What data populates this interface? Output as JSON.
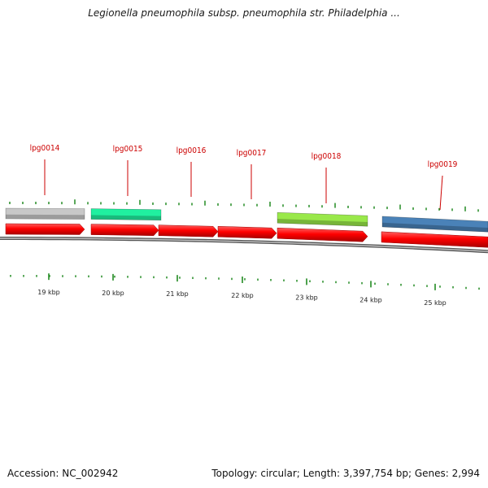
{
  "title": "Legionella pneumophila subsp. pneumophila str. Philadelphia ...",
  "footer": {
    "accession": "Accession: NC_002942",
    "summary": "Topology: circular; Length: 3,397,754 bp; Genes: 2,994"
  },
  "colors": {
    "gene_label": "#cc0000",
    "leader_line": "#cc0000",
    "tick": "#228b22",
    "strand": "#ff0000",
    "backbone": "#888888"
  },
  "genes": [
    {
      "id": "lpg0014",
      "color": "#c8c8c8"
    },
    {
      "id": "lpg0015",
      "color": "#20f0a0"
    },
    {
      "id": "lpg0016",
      "color": null
    },
    {
      "id": "lpg0017",
      "color": null
    },
    {
      "id": "lpg0018",
      "color": "#99e84a"
    },
    {
      "id": "lpg0019",
      "color": "#4a82b8"
    }
  ],
  "ruler": {
    "labels": [
      "19 kbp",
      "20 kbp",
      "21 kbp",
      "22 kbp",
      "23 kbp",
      "24 kbp",
      "25 kbp"
    ]
  }
}
